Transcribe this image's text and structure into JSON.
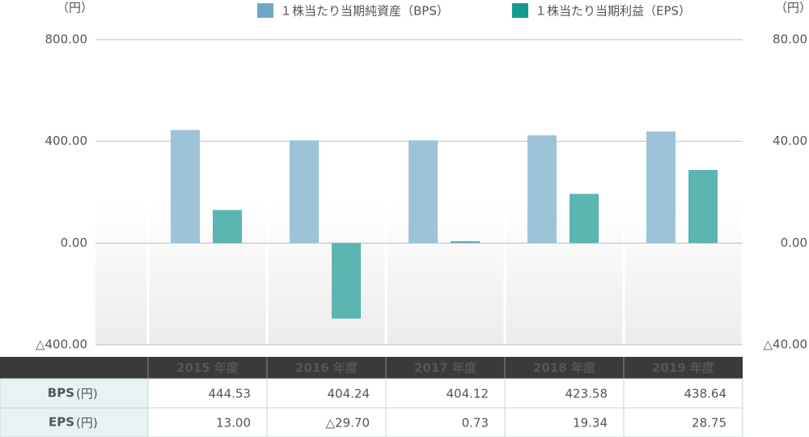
{
  "chart_data": {
    "type": "bar",
    "y_unit": "（円）",
    "y2_unit": "（円）",
    "categories": [
      "2015 年度",
      "2016 年度",
      "2017 年度",
      "2018 年度",
      "2019 年度"
    ],
    "series": [
      {
        "name": "１株当たり当期純資産（BPS）",
        "color": "#9dc3d8",
        "legend_color": "#6fa6c8",
        "values": [
          444.53,
          404.24,
          404.12,
          423.58,
          438.64
        ],
        "value_labels": [
          "444.53",
          "404.24",
          "404.12",
          "423.58",
          "438.64"
        ]
      },
      {
        "name": "１株当たり当期利益（EPS）",
        "color": "#5bb5b0",
        "legend_color": "#139a8e",
        "axis": "y2",
        "values": [
          13.0,
          -29.7,
          0.73,
          19.34,
          28.75
        ],
        "value_labels": [
          "13.00",
          "△29.70",
          "0.73",
          "19.34",
          "28.75"
        ]
      }
    ],
    "ylim": [
      -400,
      800
    ],
    "yticks": [
      {
        "value": -400,
        "label": "△400.00"
      },
      {
        "value": 0,
        "label": "0.00"
      },
      {
        "value": 400,
        "label": "400.00"
      },
      {
        "value": 800,
        "label": "800.00"
      }
    ],
    "y2lim": [
      -40,
      80
    ],
    "y2ticks": [
      {
        "value": -40,
        "label": "△40.00"
      },
      {
        "value": 0,
        "label": "0.00"
      },
      {
        "value": 40,
        "label": "40.00"
      },
      {
        "value": 80,
        "label": "80.00"
      }
    ],
    "grid": true,
    "table_row_labels": [
      "BPS",
      "EPS"
    ],
    "table_unit": "(円)"
  }
}
